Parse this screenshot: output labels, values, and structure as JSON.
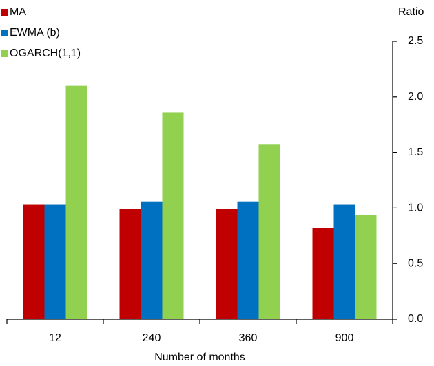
{
  "chart_data": {
    "type": "bar",
    "y_axis_label": "Ratio",
    "x_axis_label": "Number of months",
    "categories": [
      "12",
      "240",
      "360",
      "900"
    ],
    "series": [
      {
        "name": "MA",
        "color": "#c00000",
        "values": [
          1.03,
          0.99,
          0.99,
          0.82
        ]
      },
      {
        "name": "EWMA (b)",
        "color": "#0070c0",
        "values": [
          1.03,
          1.06,
          1.06,
          1.03
        ]
      },
      {
        "name": "OGARCH(1,1)",
        "color": "#92d050",
        "values": [
          2.1,
          1.86,
          1.57,
          0.94
        ]
      }
    ],
    "ylim": [
      0,
      2.5
    ],
    "yticks": [
      {
        "value": 0,
        "label": "0.0"
      },
      0.5,
      {
        "value": 1,
        "label": "1.0"
      },
      1.5,
      {
        "value": 2,
        "label": "2.0"
      },
      2.5
    ],
    "y_axis_side": "right",
    "legend": "top-left",
    "grid": false
  }
}
